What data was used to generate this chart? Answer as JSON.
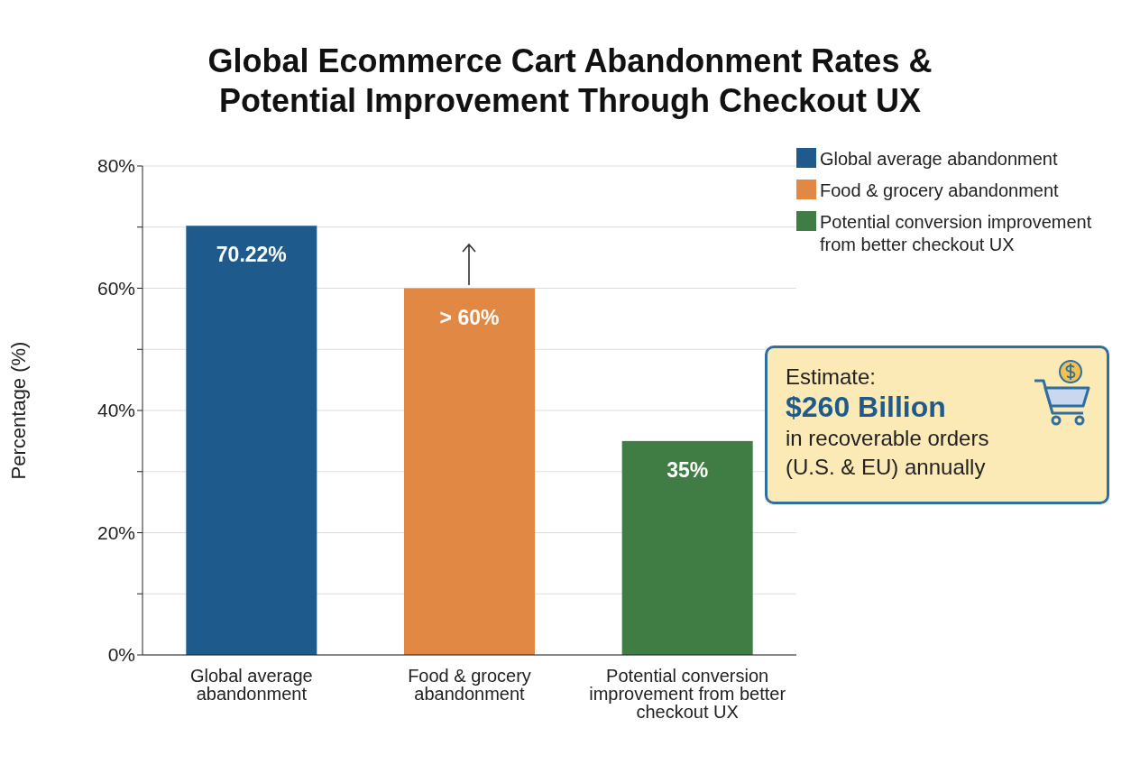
{
  "chart_data": {
    "type": "bar",
    "title": "Global Ecommerce Cart Abandonment Rates & Potential Improvement Through Checkout UX",
    "ylabel": "Percentage (%)",
    "categories": [
      "Global average abandonment",
      "Food & grocery abandonment",
      "Potential conversion improvement from better checkout UX"
    ],
    "stacked": true,
    "series": [
      {
        "name": "Global average abandonment",
        "color": "#1f5a8c",
        "values": [
          70.22,
          null,
          null
        ],
        "value_labels": [
          "70.22%",
          null,
          null
        ]
      },
      {
        "name": "Food & grocery abandonment",
        "color": "#e08844",
        "values": [
          null,
          60,
          null
        ],
        "value_labels": [
          null,
          "> 60%",
          null
        ]
      },
      {
        "name": "Potential conversion improvement from better checkout UX",
        "color": "#3f7d45",
        "values": [
          null,
          null,
          35
        ],
        "value_labels": [
          null,
          null,
          "35%"
        ]
      }
    ],
    "ylim": [
      0,
      80
    ],
    "yticks": [
      {
        "value": 0,
        "label": "0%"
      },
      {
        "value": 10,
        "label": null
      },
      {
        "value": 20,
        "label": "20%"
      },
      {
        "value": 30,
        "label": null
      },
      {
        "value": 40,
        "label": "40%"
      },
      {
        "value": 50,
        "label": null
      },
      {
        "value": 60,
        "label": "60%"
      },
      {
        "value": 70,
        "label": null
      },
      {
        "value": 80,
        "label": "80%"
      }
    ],
    "grid": true,
    "legend": "top right",
    "annotations": [
      "Estimate:",
      "$260 Billion",
      "in recoverable orders (U.S. & EU) annually"
    ]
  }
}
